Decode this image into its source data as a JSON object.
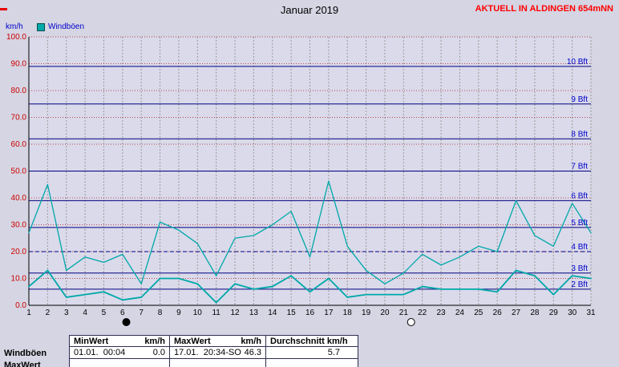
{
  "header": {
    "title": "Januar 2019",
    "station_banner": "AKTUELL IN ALDINGEN 654mNN"
  },
  "legend": {
    "label": "Windböen",
    "swatch_color": "#00a8a8"
  },
  "chart_data": {
    "type": "line",
    "title": "Januar 2019",
    "xlabel": "",
    "ylabel": "km/h",
    "y_axis_unit": "km/h",
    "ylim": [
      0,
      100
    ],
    "grid": "on",
    "days": [
      1,
      2,
      3,
      4,
      5,
      6,
      7,
      8,
      9,
      10,
      11,
      12,
      13,
      14,
      15,
      16,
      17,
      18,
      19,
      20,
      21,
      22,
      23,
      24,
      25,
      26,
      27,
      28,
      29,
      30,
      31
    ],
    "yticks": [
      {
        "value": 0,
        "label": "0.0"
      },
      {
        "value": 10,
        "label": "10.0"
      },
      {
        "value": 20,
        "label": "20.0"
      },
      {
        "value": 30,
        "label": "30.0"
      },
      {
        "value": 40,
        "label": "40.0"
      },
      {
        "value": 50,
        "label": "50.0"
      },
      {
        "value": 60,
        "label": "60.0"
      },
      {
        "value": 70,
        "label": "70.0"
      },
      {
        "value": 80,
        "label": "80.0"
      },
      {
        "value": 90,
        "label": "90.0"
      },
      {
        "value": 100,
        "label": "100.0"
      }
    ],
    "beaufort_lines": [
      {
        "value": 6,
        "label": "2 Bft",
        "dashed": false
      },
      {
        "value": 12,
        "label": "3 Bft",
        "dashed": false
      },
      {
        "value": 20,
        "label": "4 Bft",
        "dashed": true
      },
      {
        "value": 29,
        "label": "5 Bft",
        "dashed": false
      },
      {
        "value": 39,
        "label": "6 Bft",
        "dashed": false
      },
      {
        "value": 50,
        "label": "7 Bft",
        "dashed": false
      },
      {
        "value": 62,
        "label": "8 Bft",
        "dashed": false
      },
      {
        "value": 75,
        "label": "9 Bft",
        "dashed": false
      },
      {
        "value": 89,
        "label": "10 Bft",
        "dashed": false
      }
    ],
    "series": [
      {
        "name": "Windböen",
        "color": "#00a8a8",
        "width": 1.3,
        "values": [
          27,
          45,
          13,
          18,
          16,
          19,
          8,
          31,
          28,
          23,
          11,
          25,
          26,
          30,
          35,
          18,
          46.3,
          22,
          13,
          8,
          12,
          19,
          15,
          18,
          22,
          20,
          39,
          26,
          22,
          38,
          27
        ]
      },
      {
        "name": "",
        "color": "#00a8a8",
        "width": 1.8,
        "values": [
          7,
          13,
          3,
          4,
          5,
          2,
          3,
          10,
          10,
          8,
          1,
          8,
          6,
          7,
          11,
          5,
          10,
          3,
          4,
          4,
          4,
          7,
          6,
          6,
          6,
          5,
          13,
          11,
          4,
          11,
          10
        ]
      }
    ],
    "moon_markers": [
      {
        "day": 6.2,
        "phase": "new"
      },
      {
        "day": 21.4,
        "phase": "full"
      }
    ],
    "colors": {
      "plot_bg": "#dadaeb",
      "day_grid": "#9a9a9a",
      "tick_grid": "#b84848",
      "beaufort_line": "#000080",
      "ytick_text": "#cc0000",
      "bft_text": "#0000c8",
      "axis": "#000000",
      "xtick_text": "#000000"
    }
  },
  "table": {
    "min_header": "MinWert",
    "max_header": "MaxWert",
    "unit": "km/h",
    "avg_header": "Durchschnitt km/h",
    "row_label": "Windböen",
    "min_datetime": "01.01.  00:04",
    "min_value": "0.0",
    "max_datetime": "17.01.  20:34-SO",
    "max_value": "46.3",
    "avg_value": "5.7",
    "next_row_label": "MaxWert"
  }
}
